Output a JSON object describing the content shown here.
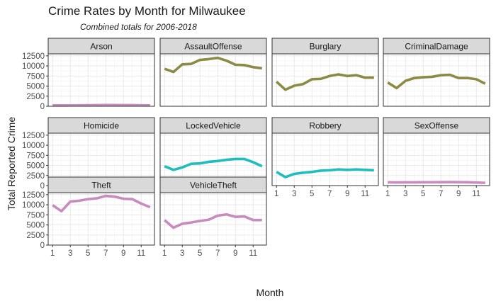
{
  "title": "Crime Rates by Month for Milwaukee",
  "subtitle": "Combined totals for 2006-2018",
  "chart_data": {
    "type": "line",
    "facet": "wrap",
    "xlabel": "Month",
    "ylabel": "Total Reported Crime",
    "xlim": [
      0.5,
      12.5
    ],
    "ylim": [
      0,
      13000
    ],
    "xticks": [
      1,
      3,
      5,
      7,
      9,
      11
    ],
    "yticks": [
      0,
      2500,
      5000,
      7500,
      10000,
      12500
    ],
    "grid": true,
    "legend": "none",
    "x": [
      1,
      2,
      3,
      4,
      5,
      6,
      7,
      8,
      9,
      10,
      11,
      12
    ],
    "panels": [
      {
        "name": "Arson",
        "color": "#c78bbd",
        "values": [
          200,
          200,
          220,
          230,
          250,
          280,
          300,
          300,
          280,
          280,
          230,
          200
        ]
      },
      {
        "name": "AssaultOffense",
        "color": "#8c8a45",
        "values": [
          9300,
          8500,
          10400,
          10500,
          11500,
          11700,
          12000,
          11300,
          10300,
          10200,
          9700,
          9400
        ]
      },
      {
        "name": "Burglary",
        "color": "#8c8a45",
        "values": [
          6100,
          4100,
          5100,
          5500,
          6700,
          6800,
          7500,
          7900,
          7500,
          7700,
          7100,
          7100
        ]
      },
      {
        "name": "CriminalDamage",
        "color": "#8c8a45",
        "values": [
          5900,
          4500,
          6300,
          7000,
          7200,
          7300,
          7700,
          7800,
          7000,
          7000,
          6700,
          5600
        ]
      },
      {
        "name": "Homicide",
        "color": "#1fbdbd",
        "values": [
          40,
          30,
          40,
          45,
          60,
          60,
          70,
          70,
          60,
          55,
          50,
          45
        ]
      },
      {
        "name": "LockedVehicle",
        "color": "#1fbdbd",
        "values": [
          4800,
          3900,
          4500,
          5400,
          5500,
          5900,
          6100,
          6400,
          6600,
          6600,
          5800,
          4800
        ]
      },
      {
        "name": "Robbery",
        "color": "#1fbdbd",
        "values": [
          3400,
          2100,
          2900,
          3200,
          3400,
          3700,
          3800,
          4000,
          3900,
          4000,
          3900,
          3800
        ]
      },
      {
        "name": "SexOffense",
        "color": "#c78bbd",
        "values": [
          800,
          780,
          800,
          810,
          820,
          830,
          850,
          860,
          840,
          820,
          760,
          680
        ]
      },
      {
        "name": "Theft",
        "color": "#c78bbd",
        "values": [
          9900,
          8400,
          10800,
          11000,
          11400,
          11600,
          12200,
          12000,
          11500,
          11400,
          10300,
          9400
        ]
      },
      {
        "name": "VehicleTheft",
        "color": "#c78bbd",
        "values": [
          6200,
          4300,
          5300,
          5600,
          6000,
          6300,
          7300,
          7600,
          7000,
          7100,
          6200,
          6200
        ]
      }
    ]
  }
}
